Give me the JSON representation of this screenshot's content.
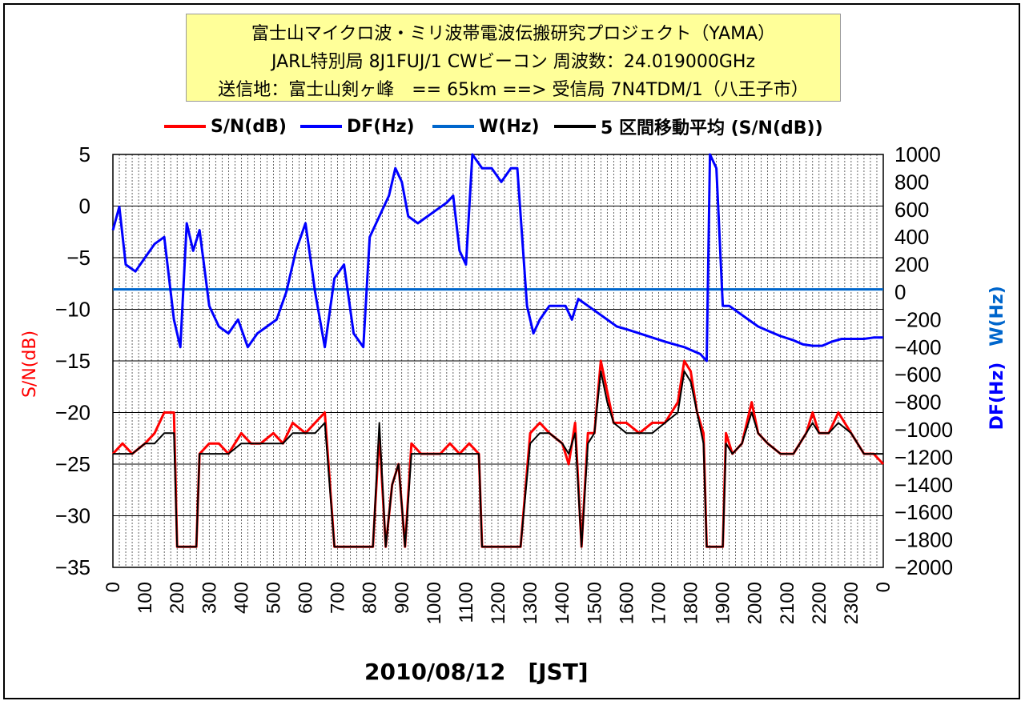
{
  "header": {
    "line1": "富士山マイクロ波・ミリ波帯電波伝搬研究プロジェクト（YAMA）",
    "line2": "JARL特別局 8J1FUJ/1 CWビーコン 周波数：24.019000GHz",
    "line3": "送信地：富士山剣ヶ峰　== 65km ==> 受信局 7N4TDM/1（八王子市）"
  },
  "legend": [
    {
      "label": "S/N(dB)",
      "color": "#ff0000"
    },
    {
      "label": "DF(Hz)",
      "color": "#0000ff"
    },
    {
      "label": "W(Hz)",
      "color": "#0066cc"
    },
    {
      "label": "5 区間移動平均 (S/N(dB))",
      "color": "#000000"
    }
  ],
  "axis_labels": {
    "left": "S/N(dB)",
    "right_df": "DF(Hz)",
    "right_w": "W(Hz)",
    "bottom": "2010/08/12　[JST]"
  },
  "chart_data": {
    "type": "line",
    "x_tick_labels": [
      "0",
      "100",
      "200",
      "300",
      "400",
      "500",
      "600",
      "700",
      "800",
      "900",
      "1000",
      "1100",
      "1200",
      "1300",
      "1400",
      "1500",
      "1600",
      "1700",
      "1800",
      "1900",
      "2000",
      "2100",
      "2200",
      "2300",
      "0"
    ],
    "y_left": {
      "label": "S/N(dB)",
      "ticks": [
        5,
        0,
        -5,
        -10,
        -15,
        -20,
        -25,
        -30,
        -35
      ],
      "range": [
        -35,
        5
      ]
    },
    "y_right": {
      "label": "DF(Hz)  W(Hz)",
      "ticks": [
        1000,
        800,
        600,
        400,
        200,
        0,
        -200,
        -400,
        -600,
        -800,
        -1000,
        -1200,
        -1400,
        -1600,
        -1800,
        -2000
      ],
      "range": [
        -2000,
        1000
      ]
    },
    "grid": "vertical dotted every 20 minutes, horizontal solid every 5 dB",
    "series": [
      {
        "name": "S/N(dB)",
        "axis": "left",
        "color": "#ff0000",
        "points": [
          [
            0,
            -24
          ],
          [
            30,
            -23
          ],
          [
            60,
            -24
          ],
          [
            100,
            -23
          ],
          [
            130,
            -22
          ],
          [
            160,
            -20
          ],
          [
            190,
            -20
          ],
          [
            200,
            -33
          ],
          [
            230,
            -33
          ],
          [
            260,
            -33
          ],
          [
            270,
            -24
          ],
          [
            300,
            -23
          ],
          [
            330,
            -23
          ],
          [
            360,
            -24
          ],
          [
            400,
            -22
          ],
          [
            430,
            -23
          ],
          [
            460,
            -23
          ],
          [
            500,
            -22
          ],
          [
            530,
            -23
          ],
          [
            560,
            -21
          ],
          [
            600,
            -22
          ],
          [
            630,
            -21
          ],
          [
            660,
            -20
          ],
          [
            690,
            -33
          ],
          [
            720,
            -33
          ],
          [
            750,
            -33
          ],
          [
            780,
            -33
          ],
          [
            810,
            -33
          ],
          [
            830,
            -22
          ],
          [
            850,
            -33
          ],
          [
            870,
            -27
          ],
          [
            890,
            -25
          ],
          [
            910,
            -33
          ],
          [
            930,
            -23
          ],
          [
            960,
            -24
          ],
          [
            990,
            -24
          ],
          [
            1020,
            -24
          ],
          [
            1050,
            -23
          ],
          [
            1080,
            -24
          ],
          [
            1110,
            -23
          ],
          [
            1140,
            -24
          ],
          [
            1150,
            -33
          ],
          [
            1180,
            -33
          ],
          [
            1210,
            -33
          ],
          [
            1240,
            -33
          ],
          [
            1270,
            -33
          ],
          [
            1300,
            -22
          ],
          [
            1330,
            -21
          ],
          [
            1360,
            -22
          ],
          [
            1400,
            -23
          ],
          [
            1420,
            -25
          ],
          [
            1440,
            -21
          ],
          [
            1460,
            -33
          ],
          [
            1480,
            -22
          ],
          [
            1500,
            -22
          ],
          [
            1520,
            -15
          ],
          [
            1540,
            -18
          ],
          [
            1560,
            -21
          ],
          [
            1600,
            -21
          ],
          [
            1640,
            -22
          ],
          [
            1680,
            -21
          ],
          [
            1720,
            -21
          ],
          [
            1760,
            -19
          ],
          [
            1780,
            -15
          ],
          [
            1800,
            -16
          ],
          [
            1820,
            -20
          ],
          [
            1840,
            -22
          ],
          [
            1850,
            -33
          ],
          [
            1880,
            -33
          ],
          [
            1900,
            -33
          ],
          [
            1910,
            -22
          ],
          [
            1930,
            -24
          ],
          [
            1960,
            -23
          ],
          [
            1990,
            -19
          ],
          [
            2010,
            -22
          ],
          [
            2040,
            -23
          ],
          [
            2080,
            -24
          ],
          [
            2120,
            -24
          ],
          [
            2160,
            -22
          ],
          [
            2180,
            -20
          ],
          [
            2200,
            -22
          ],
          [
            2230,
            -22
          ],
          [
            2260,
            -20
          ],
          [
            2300,
            -22
          ],
          [
            2340,
            -24
          ],
          [
            2370,
            -24
          ],
          [
            2400,
            -25
          ]
        ]
      },
      {
        "name": "DF(Hz)",
        "axis": "right",
        "color": "#0000ff",
        "points": [
          [
            0,
            450
          ],
          [
            20,
            620
          ],
          [
            40,
            200
          ],
          [
            70,
            150
          ],
          [
            100,
            250
          ],
          [
            130,
            350
          ],
          [
            160,
            400
          ],
          [
            190,
            -200
          ],
          [
            210,
            -400
          ],
          [
            230,
            500
          ],
          [
            250,
            300
          ],
          [
            270,
            450
          ],
          [
            300,
            -100
          ],
          [
            330,
            -250
          ],
          [
            360,
            -300
          ],
          [
            390,
            -200
          ],
          [
            420,
            -400
          ],
          [
            450,
            -300
          ],
          [
            480,
            -250
          ],
          [
            510,
            -200
          ],
          [
            540,
            0
          ],
          [
            570,
            300
          ],
          [
            600,
            500
          ],
          [
            630,
            0
          ],
          [
            660,
            -400
          ],
          [
            690,
            100
          ],
          [
            720,
            200
          ],
          [
            750,
            -300
          ],
          [
            780,
            -400
          ],
          [
            800,
            400
          ],
          [
            820,
            500
          ],
          [
            840,
            600
          ],
          [
            860,
            700
          ],
          [
            880,
            900
          ],
          [
            900,
            800
          ],
          [
            920,
            550
          ],
          [
            950,
            500
          ],
          [
            980,
            550
          ],
          [
            1010,
            600
          ],
          [
            1040,
            650
          ],
          [
            1060,
            700
          ],
          [
            1080,
            300
          ],
          [
            1100,
            200
          ],
          [
            1120,
            1000
          ],
          [
            1150,
            900
          ],
          [
            1180,
            900
          ],
          [
            1210,
            800
          ],
          [
            1240,
            900
          ],
          [
            1260,
            900
          ],
          [
            1290,
            -100
          ],
          [
            1310,
            -300
          ],
          [
            1330,
            -200
          ],
          [
            1360,
            -100
          ],
          [
            1390,
            -100
          ],
          [
            1410,
            -100
          ],
          [
            1430,
            -200
          ],
          [
            1450,
            -50
          ],
          [
            1480,
            -100
          ],
          [
            1510,
            -150
          ],
          [
            1540,
            -200
          ],
          [
            1570,
            -250
          ],
          [
            1600,
            -270
          ],
          [
            1640,
            -300
          ],
          [
            1680,
            -330
          ],
          [
            1720,
            -360
          ],
          [
            1750,
            -380
          ],
          [
            1780,
            -400
          ],
          [
            1800,
            -420
          ],
          [
            1830,
            -450
          ],
          [
            1850,
            -500
          ],
          [
            1860,
            1000
          ],
          [
            1880,
            900
          ],
          [
            1900,
            -100
          ],
          [
            1920,
            -100
          ],
          [
            1950,
            -150
          ],
          [
            1980,
            -200
          ],
          [
            2010,
            -250
          ],
          [
            2040,
            -280
          ],
          [
            2080,
            -320
          ],
          [
            2120,
            -350
          ],
          [
            2150,
            -380
          ],
          [
            2180,
            -390
          ],
          [
            2210,
            -390
          ],
          [
            2240,
            -360
          ],
          [
            2270,
            -340
          ],
          [
            2300,
            -340
          ],
          [
            2340,
            -340
          ],
          [
            2370,
            -330
          ],
          [
            2400,
            -330
          ]
        ]
      },
      {
        "name": "W(Hz)",
        "axis": "right",
        "color": "#0066cc",
        "points": [
          [
            0,
            20
          ],
          [
            200,
            20
          ],
          [
            400,
            20
          ],
          [
            600,
            20
          ],
          [
            800,
            20
          ],
          [
            1000,
            20
          ],
          [
            1200,
            20
          ],
          [
            1400,
            20
          ],
          [
            1600,
            20
          ],
          [
            1800,
            20
          ],
          [
            2000,
            20
          ],
          [
            2200,
            20
          ],
          [
            2400,
            20
          ]
        ]
      },
      {
        "name": "5 区間移動平均 (S/N(dB))",
        "axis": "left",
        "color": "#000000",
        "points": [
          [
            0,
            -24
          ],
          [
            30,
            -24
          ],
          [
            60,
            -24
          ],
          [
            100,
            -23
          ],
          [
            130,
            -23
          ],
          [
            160,
            -22
          ],
          [
            190,
            -22
          ],
          [
            200,
            -33
          ],
          [
            230,
            -33
          ],
          [
            260,
            -33
          ],
          [
            270,
            -24
          ],
          [
            300,
            -24
          ],
          [
            330,
            -24
          ],
          [
            360,
            -24
          ],
          [
            400,
            -23
          ],
          [
            430,
            -23
          ],
          [
            460,
            -23
          ],
          [
            500,
            -23
          ],
          [
            530,
            -23
          ],
          [
            560,
            -22
          ],
          [
            600,
            -22
          ],
          [
            630,
            -22
          ],
          [
            660,
            -21
          ],
          [
            690,
            -33
          ],
          [
            720,
            -33
          ],
          [
            750,
            -33
          ],
          [
            780,
            -33
          ],
          [
            810,
            -33
          ],
          [
            830,
            -21
          ],
          [
            850,
            -33
          ],
          [
            870,
            -27
          ],
          [
            890,
            -25
          ],
          [
            910,
            -33
          ],
          [
            930,
            -24
          ],
          [
            960,
            -24
          ],
          [
            990,
            -24
          ],
          [
            1020,
            -24
          ],
          [
            1050,
            -24
          ],
          [
            1080,
            -24
          ],
          [
            1110,
            -24
          ],
          [
            1140,
            -24
          ],
          [
            1150,
            -33
          ],
          [
            1180,
            -33
          ],
          [
            1210,
            -33
          ],
          [
            1240,
            -33
          ],
          [
            1270,
            -33
          ],
          [
            1300,
            -23
          ],
          [
            1330,
            -22
          ],
          [
            1360,
            -22
          ],
          [
            1400,
            -23
          ],
          [
            1420,
            -24
          ],
          [
            1440,
            -22
          ],
          [
            1460,
            -33
          ],
          [
            1480,
            -23
          ],
          [
            1500,
            -22
          ],
          [
            1520,
            -16
          ],
          [
            1540,
            -19
          ],
          [
            1560,
            -21
          ],
          [
            1600,
            -22
          ],
          [
            1640,
            -22
          ],
          [
            1680,
            -22
          ],
          [
            1720,
            -21
          ],
          [
            1760,
            -20
          ],
          [
            1780,
            -16
          ],
          [
            1800,
            -17
          ],
          [
            1820,
            -20
          ],
          [
            1840,
            -23
          ],
          [
            1850,
            -33
          ],
          [
            1880,
            -33
          ],
          [
            1900,
            -33
          ],
          [
            1910,
            -23
          ],
          [
            1930,
            -24
          ],
          [
            1960,
            -23
          ],
          [
            1990,
            -20
          ],
          [
            2010,
            -22
          ],
          [
            2040,
            -23
          ],
          [
            2080,
            -24
          ],
          [
            2120,
            -24
          ],
          [
            2160,
            -22
          ],
          [
            2180,
            -21
          ],
          [
            2200,
            -22
          ],
          [
            2230,
            -22
          ],
          [
            2260,
            -21
          ],
          [
            2300,
            -22
          ],
          [
            2340,
            -24
          ],
          [
            2370,
            -24
          ],
          [
            2400,
            -24
          ]
        ]
      }
    ]
  }
}
